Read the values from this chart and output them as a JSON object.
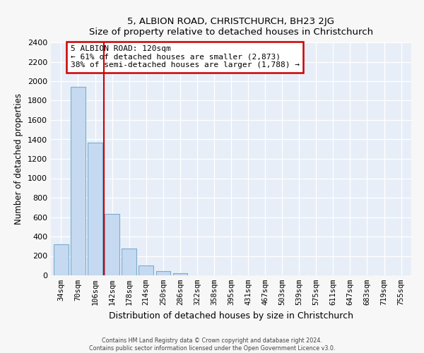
{
  "title1": "5, ALBION ROAD, CHRISTCHURCH, BH23 2JG",
  "title2": "Size of property relative to detached houses in Christchurch",
  "xlabel": "Distribution of detached houses by size in Christchurch",
  "ylabel": "Number of detached properties",
  "bar_labels": [
    "34sqm",
    "70sqm",
    "106sqm",
    "142sqm",
    "178sqm",
    "214sqm",
    "250sqm",
    "286sqm",
    "322sqm",
    "358sqm",
    "395sqm",
    "431sqm",
    "467sqm",
    "503sqm",
    "539sqm",
    "575sqm",
    "611sqm",
    "647sqm",
    "683sqm",
    "719sqm",
    "755sqm"
  ],
  "bar_values": [
    320,
    1940,
    1370,
    630,
    280,
    100,
    45,
    25,
    0,
    0,
    0,
    0,
    0,
    0,
    0,
    0,
    0,
    0,
    0,
    0,
    0
  ],
  "bar_color": "#c5d9f0",
  "bar_edgecolor": "#7aadce",
  "property_line_x": 2.5,
  "annotation_text": "5 ALBION ROAD: 120sqm\n← 61% of detached houses are smaller (2,873)\n38% of semi-detached houses are larger (1,788) →",
  "vline_color": "#cc0000",
  "annotation_box_edgecolor": "#cc0000",
  "annotation_box_facecolor": "#ffffff",
  "ylim": [
    0,
    2400
  ],
  "yticks": [
    0,
    200,
    400,
    600,
    800,
    1000,
    1200,
    1400,
    1600,
    1800,
    2000,
    2200,
    2400
  ],
  "footer1": "Contains HM Land Registry data © Crown copyright and database right 2024.",
  "footer2": "Contains public sector information licensed under the Open Government Licence v3.0.",
  "bg_color": "#f7f7f7",
  "plot_bg_color": "#e8eef8"
}
